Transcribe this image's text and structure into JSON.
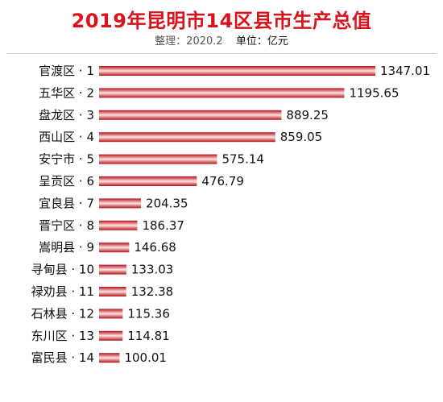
{
  "title": "2019年昆明市14区县市生产总值",
  "subtitle_note": "整理：2020.2",
  "subtitle_unit": "单位：亿元",
  "colors": {
    "title": "#d9121b",
    "bar_dark": "#b3121a",
    "bar_light": "#ffe2e2"
  },
  "chart_data": {
    "type": "bar",
    "orientation": "horizontal",
    "categories": [
      "官渡区 · 1",
      "五华区 · 2",
      "盘龙区 · 3",
      "西山区 · 4",
      "安宁市 · 5",
      "呈贡区 · 6",
      "宜良县 · 7",
      "晋宁区 · 8",
      "嵩明县 · 9",
      "寻甸县 · 10",
      "禄劝县 · 11",
      "石林县 · 12",
      "东川区 · 13",
      "富民县 · 14"
    ],
    "values": [
      1347.01,
      1195.65,
      889.25,
      859.05,
      575.14,
      476.79,
      204.35,
      186.37,
      146.68,
      133.03,
      132.38,
      115.36,
      114.81,
      100.01
    ],
    "value_labels": [
      "1347.01",
      "1195.65",
      "889.25",
      "859.05",
      "575.14",
      "476.79",
      "204.35",
      "186.37",
      "146.68",
      "133.03",
      "132.38",
      "115.36",
      "114.81",
      "100.01"
    ],
    "title": "2019年昆明市14区县市生产总值",
    "xlabel": "",
    "ylabel": "",
    "grid": false,
    "legend": "none"
  }
}
